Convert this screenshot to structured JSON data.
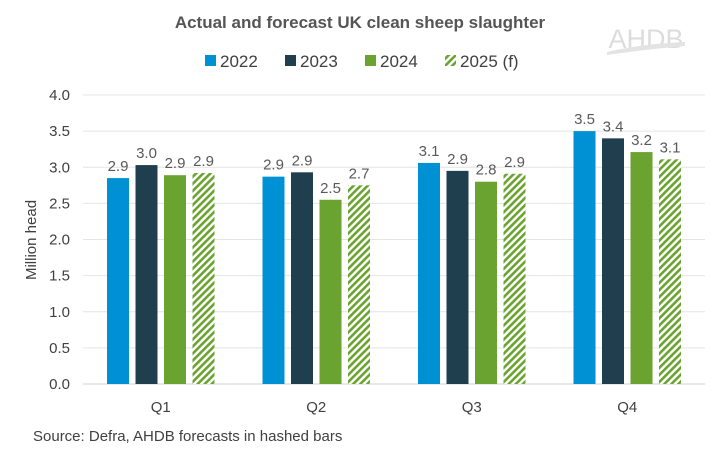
{
  "chart_data": {
    "type": "bar",
    "title": "Actual and forecast UK clean sheep slaughter",
    "xlabel": "",
    "ylabel": "Million head",
    "ylim": [
      0,
      4.0
    ],
    "yticks": [
      "0.0",
      "0.5",
      "1.0",
      "1.5",
      "2.0",
      "2.5",
      "3.0",
      "3.5",
      "4.0"
    ],
    "grid": true,
    "legend_position": "top",
    "categories": [
      "Q1",
      "Q2",
      "Q3",
      "Q4"
    ],
    "series": [
      {
        "name": "2022",
        "color": "#0090D4",
        "hatched": false,
        "values": [
          2.85,
          2.87,
          3.06,
          3.5
        ],
        "labels": [
          "2.9",
          "2.9",
          "3.1",
          "3.5"
        ]
      },
      {
        "name": "2023",
        "color": "#1F3F4F",
        "hatched": false,
        "values": [
          3.03,
          2.93,
          2.95,
          3.4
        ],
        "labels": [
          "3.0",
          "2.9",
          "2.9",
          "3.4"
        ]
      },
      {
        "name": "2024",
        "color": "#6BA330",
        "hatched": false,
        "values": [
          2.89,
          2.55,
          2.8,
          3.21
        ],
        "labels": [
          "2.9",
          "2.5",
          "2.8",
          "3.2"
        ]
      },
      {
        "name": "2025 (f)",
        "color": "#6BA330",
        "hatched": true,
        "values": [
          2.92,
          2.75,
          2.91,
          3.11
        ],
        "labels": [
          "2.9",
          "2.7",
          "2.9",
          "3.1"
        ]
      }
    ],
    "source": "Source: Defra, AHDB forecasts in hashed bars"
  },
  "logo": "AHDB"
}
